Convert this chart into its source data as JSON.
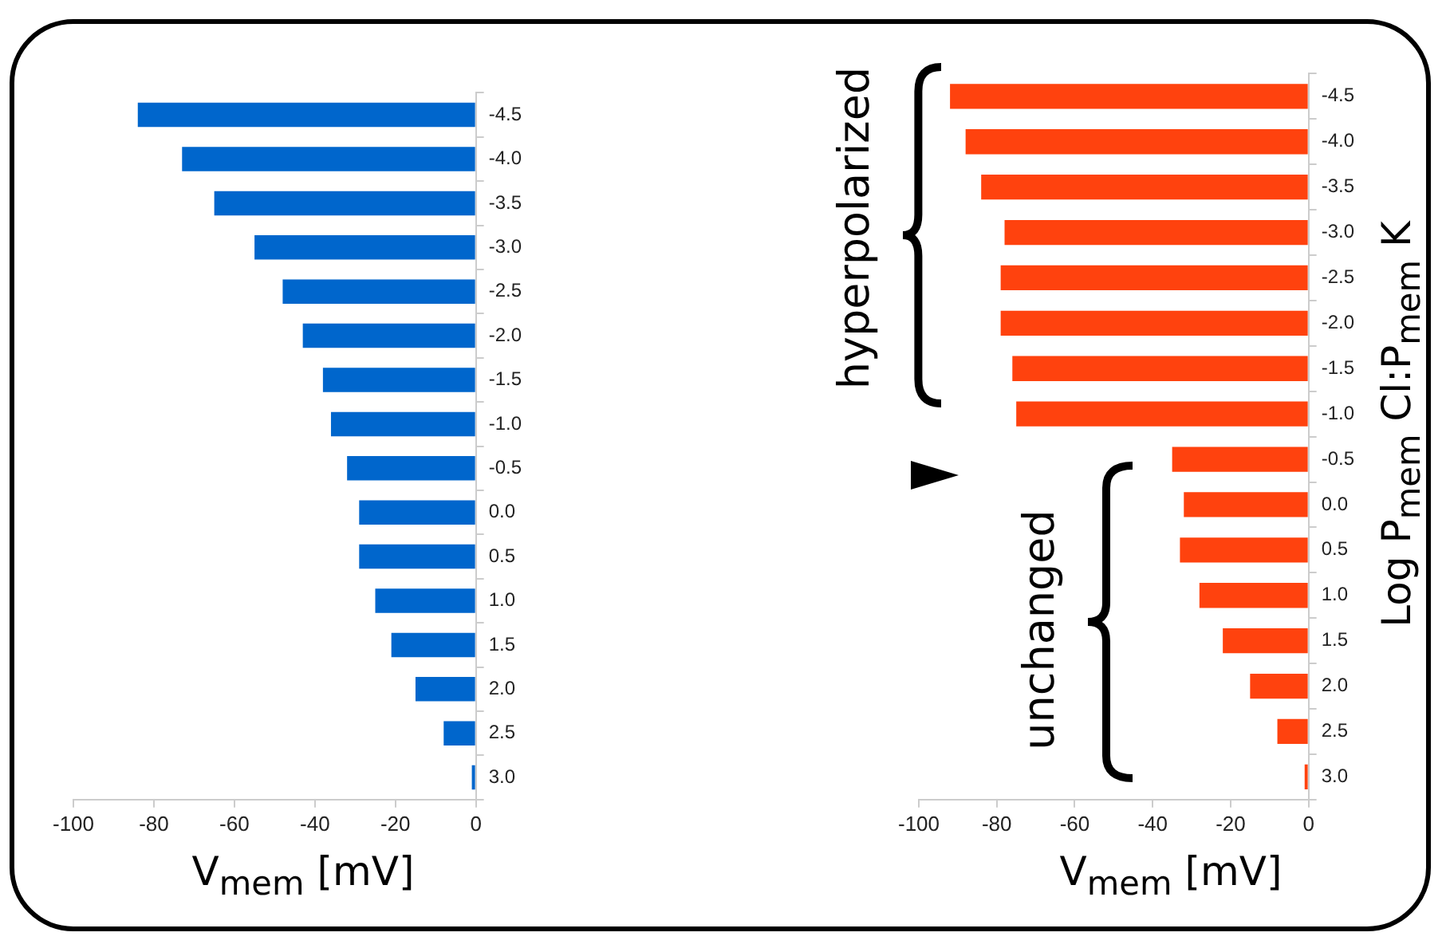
{
  "chart_data": [
    {
      "type": "bar",
      "orientation": "horizontal",
      "xlabel": "V$_{mem}$ [mV]",
      "categories": [
        "-4.5",
        "-4.0",
        "-3.5",
        "-3.0",
        "-2.5",
        "-2.0",
        "-1.5",
        "-1.0",
        "-0.5",
        "0.0",
        "0.5",
        "1.0",
        "1.5",
        "2.0",
        "2.5",
        "3.0"
      ],
      "series": [
        {
          "color": "#0066cc",
          "values": [
            -84,
            -73,
            -65,
            -55,
            -48,
            -43,
            -38,
            -36,
            -32,
            -29,
            -29,
            -25,
            -21,
            -15,
            -8,
            -1
          ]
        }
      ],
      "xlim": [
        -100,
        0
      ],
      "xticks": [
        -100,
        -80,
        -60,
        -40,
        -20,
        0
      ],
      "grid": false
    },
    {
      "type": "bar",
      "orientation": "horizontal",
      "xlabel": "V$_{mem}$ [mV]",
      "ylabel": "Log P$_{mem}$ Cl:P$_{mem}$ K",
      "categories": [
        "-4.5",
        "-4.0",
        "-3.5",
        "-3.0",
        "-2.5",
        "-2.0",
        "-1.5",
        "-1.0",
        "-0.5",
        "0.0",
        "0.5",
        "1.0",
        "1.5",
        "2.0",
        "2.5",
        "3.0"
      ],
      "series": [
        {
          "color": "#ff420e",
          "values": [
            -92,
            -88,
            -84,
            -78,
            -79,
            -79,
            -76,
            -75,
            -35,
            -32,
            -33,
            -28,
            -22,
            -15,
            -8,
            -1
          ]
        }
      ],
      "xlim": [
        -100,
        0
      ],
      "xticks": [
        -100,
        -80,
        -60,
        -40,
        -20,
        0
      ],
      "grid": false,
      "annotations": [
        "hyperpolarized",
        "unchanged"
      ]
    }
  ]
}
